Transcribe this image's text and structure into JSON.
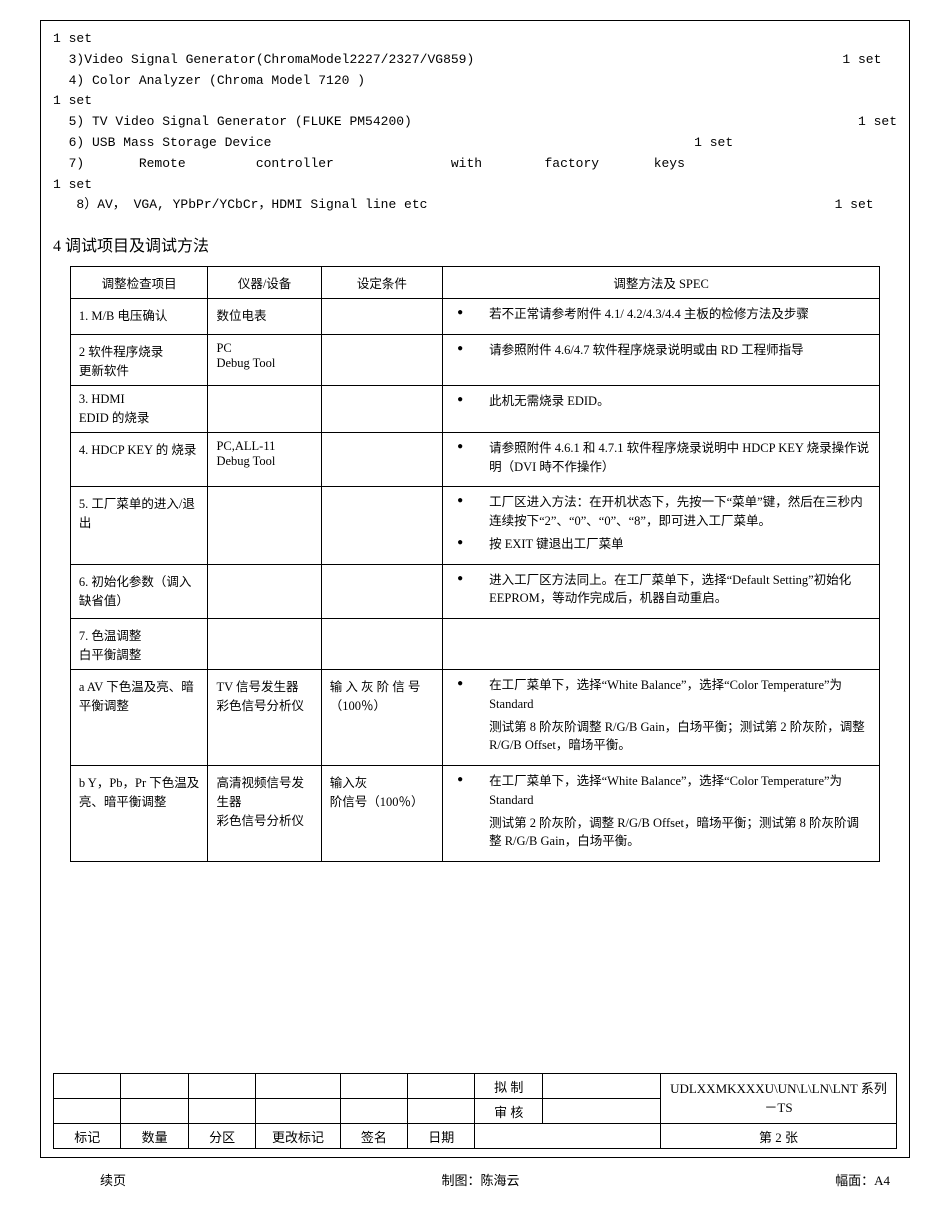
{
  "equipment": {
    "lines": [
      {
        "left": "1 set",
        "right": ""
      },
      {
        "left": "  3)Video Signal Generator(ChromaModel2227/2327/VG859)",
        "right": "1 set  "
      },
      {
        "left": "  4) Color Analyzer (Chroma Model 7120 )",
        "right": ""
      },
      {
        "left": "1 set",
        "right": ""
      },
      {
        "left": "",
        "right": ""
      },
      {
        "left": "  5) TV Video Signal Generator (FLUKE PM54200)",
        "right": "1 set"
      },
      {
        "left": "  6) USB Mass Storage Device",
        "right": "1 set                     "
      },
      {
        "left": "  7)       Remote         controller               with        factory       keys",
        "right": ""
      },
      {
        "left": "1 set",
        "right": ""
      },
      {
        "left": "   8）AV， VGA, YPbPr/YCbCr，HDMI Signal line etc",
        "right": "1 set   "
      }
    ]
  },
  "section_title": "4 调试项目及调试方法",
  "table": {
    "headers": [
      "调整检查项目",
      "仪器/设备",
      "设定条件",
      "调整方法及 SPEC"
    ],
    "rows": [
      {
        "c1": "1. M/B 电压确认",
        "c2": "数位电表",
        "c3": "",
        "spec": [
          "若不正常请参考附件 4.1/ 4.2/4.3/4.4 主板的检修方法及步骤"
        ]
      },
      {
        "c1": "2 软件程序烧录\n更新软件",
        "c2": "PC\nDebug Tool",
        "c3": "",
        "spec": [
          "请参照附件 4.6/4.7 软件程序烧录说明或由 RD 工程师指导"
        ]
      },
      {
        "c1": "3. HDMI\nEDID 的烧录",
        "c2": "",
        "c3": "",
        "spec": [
          "此机无需烧录 EDID。"
        ]
      },
      {
        "c1": "4. HDCP KEY 的 烧录",
        "c2": "PC,ALL-11\nDebug Tool",
        "c3": "",
        "spec": [
          "请参照附件 4.6.1 和 4.7.1 软件程序烧录说明中 HDCP KEY 烧录操作说明（DVI 時不作操作）"
        ]
      },
      {
        "c1": "5. 工厂菜单的进入/退出",
        "c2": "",
        "c3": "",
        "spec": [
          "工厂区进入方法：在开机状态下，先按一下“菜单”键，然后在三秒内连续按下“2”、“0”、“0”、“8”，即可进入工厂菜单。",
          "按 EXIT 键退出工厂菜单"
        ]
      },
      {
        "c1": "6. 初始化参数（调入缺省值）",
        "c2": "",
        "c3": "",
        "spec": [
          "进入工厂区方法同上。在工厂菜单下，选择“Default Setting”初始化 EEPROM，等动作完成后，机器自动重启。"
        ]
      },
      {
        "c1": "7.  色温调整\n   白平衡調整",
        "c2": "",
        "c3": "",
        "spec": []
      },
      {
        "c1": "a AV 下色温及亮、暗平衡调整",
        "c2": "TV 信号发生器\n彩色信号分析仪",
        "c3": "输 入 灰 阶 信 号（100％）",
        "spec": [
          "在工厂菜单下，选择“White Balance”，选择“Color Temperature”为 Standard",
          "__SUB__测试第 8 阶灰阶调整 R/G/B Gain，白场平衡；测试第 2 阶灰阶，调整 R/G/B Offset，暗场平衡。"
        ]
      },
      {
        "c1": "b Y，Pb，Pr 下色温及亮、暗平衡调整",
        "c2": "高清视频信号发生器\n彩色信号分析仪",
        "c3": "输入灰\n阶信号（100％）",
        "spec": [
          "在工厂菜单下，选择“White Balance”，选择“Color Temperature”为 Standard",
          "__SUB__测试第 2 阶灰阶，调整 R/G/B Offset，暗场平衡；测试第 8 阶灰阶调整 R/G/B Gain，白场平衡。"
        ]
      }
    ]
  },
  "footer": {
    "row1": {
      "label": "拟 制"
    },
    "row2": {
      "label": "审 核",
      "series": "UDLXXMKXXXU\\UN\\L\\LN\\LNT 系列－TS"
    },
    "row3": {
      "c1": "标记",
      "c2": "数量",
      "c3": "分区",
      "c4": "更改标记",
      "c5": "签名",
      "c6": "日期",
      "page": "第 2 张"
    },
    "bottom": {
      "left": "续页",
      "mid": "制图：陈海云",
      "right": "幅面：A4"
    }
  }
}
